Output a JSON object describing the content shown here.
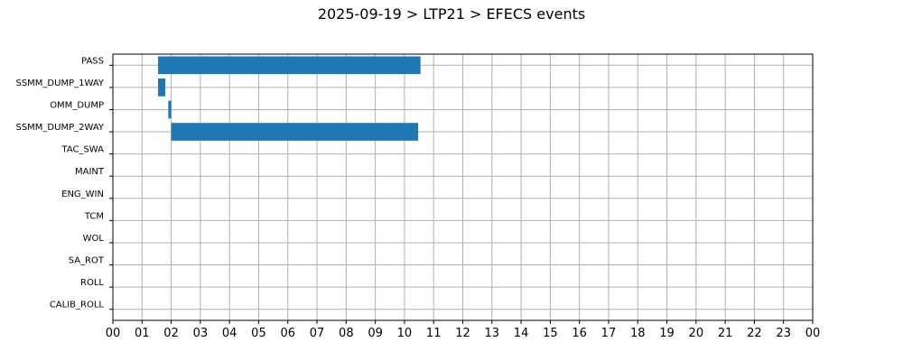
{
  "chart_data": {
    "type": "gantt",
    "title": "2025-09-19 > LTP21 > EFECS events",
    "xlabel": "",
    "ylabel": "",
    "x_range_hours": [
      0,
      24
    ],
    "x_tick_labels": [
      "00",
      "01",
      "02",
      "03",
      "04",
      "05",
      "06",
      "07",
      "08",
      "09",
      "10",
      "11",
      "12",
      "13",
      "14",
      "15",
      "16",
      "17",
      "18",
      "19",
      "20",
      "21",
      "22",
      "23",
      "00"
    ],
    "categories": [
      "PASS",
      "SSMM_DUMP_1WAY",
      "OMM_DUMP",
      "SSMM_DUMP_2WAY",
      "TAC_SWA",
      "MAINT",
      "ENG_WIN",
      "TCM",
      "WOL",
      "SA_ROT",
      "ROLL",
      "CALIB_ROLL"
    ],
    "grid": true,
    "bar_color": "#1f77b4",
    "bars": [
      {
        "category": "PASS",
        "start_hour": 1.55,
        "end_hour": 10.55
      },
      {
        "category": "SSMM_DUMP_1WAY",
        "start_hour": 1.55,
        "end_hour": 1.8
      },
      {
        "category": "OMM_DUMP",
        "start_hour": 1.9,
        "end_hour": 2.0
      },
      {
        "category": "SSMM_DUMP_2WAY",
        "start_hour": 2.0,
        "end_hour": 10.47
      }
    ]
  }
}
